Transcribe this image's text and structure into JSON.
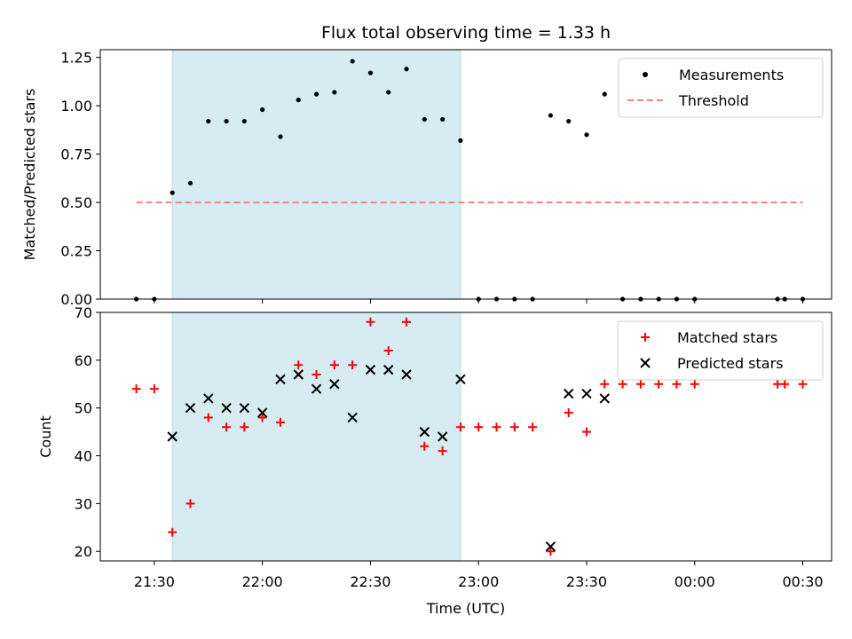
{
  "chart_data": [
    {
      "type": "scatter",
      "title": "Flux total observing time = 1.33 h",
      "ylabel": "Matched/Predicted stars",
      "xlabel": "",
      "ylim": [
        0,
        1.29
      ],
      "yticks": [
        0.0,
        0.25,
        0.5,
        0.75,
        1.0,
        1.25
      ],
      "ytick_labels": [
        "0.00",
        "0.25",
        "0.50",
        "0.75",
        "1.00",
        "1.25"
      ],
      "legend_position": "top-right",
      "shaded_interval": [
        "21:35",
        "22:55"
      ],
      "shaded_color": "#add8e6",
      "threshold": {
        "name": "Threshold",
        "value": 0.5,
        "x_range": [
          "21:25",
          "00:30"
        ],
        "color": "#ff7f7f",
        "style": "dashed"
      },
      "series": [
        {
          "name": "Measurements",
          "color": "#000000",
          "marker": "dot",
          "points": [
            {
              "x": "21:25",
              "y": 0.0
            },
            {
              "x": "21:30",
              "y": 0.0
            },
            {
              "x": "21:35",
              "y": 0.55
            },
            {
              "x": "21:40",
              "y": 0.6
            },
            {
              "x": "21:45",
              "y": 0.92
            },
            {
              "x": "21:50",
              "y": 0.92
            },
            {
              "x": "21:55",
              "y": 0.92
            },
            {
              "x": "22:00",
              "y": 0.98
            },
            {
              "x": "22:05",
              "y": 0.84
            },
            {
              "x": "22:10",
              "y": 1.03
            },
            {
              "x": "22:15",
              "y": 1.06
            },
            {
              "x": "22:20",
              "y": 1.07
            },
            {
              "x": "22:25",
              "y": 1.23
            },
            {
              "x": "22:30",
              "y": 1.17
            },
            {
              "x": "22:35",
              "y": 1.07
            },
            {
              "x": "22:40",
              "y": 1.19
            },
            {
              "x": "22:45",
              "y": 0.93
            },
            {
              "x": "22:50",
              "y": 0.93
            },
            {
              "x": "22:55",
              "y": 0.82
            },
            {
              "x": "23:00",
              "y": 0.0
            },
            {
              "x": "23:05",
              "y": 0.0
            },
            {
              "x": "23:10",
              "y": 0.0
            },
            {
              "x": "23:15",
              "y": 0.0
            },
            {
              "x": "23:20",
              "y": 0.95
            },
            {
              "x": "23:25",
              "y": 0.92
            },
            {
              "x": "23:30",
              "y": 0.85
            },
            {
              "x": "23:35",
              "y": 1.06
            },
            {
              "x": "23:40",
              "y": 0.0
            },
            {
              "x": "23:45",
              "y": 0.0
            },
            {
              "x": "23:50",
              "y": 0.0
            },
            {
              "x": "23:55",
              "y": 0.0
            },
            {
              "x": "00:00",
              "y": 0.0
            },
            {
              "x": "00:23",
              "y": 0.0
            },
            {
              "x": "00:25",
              "y": 0.0
            },
            {
              "x": "00:30",
              "y": 0.0
            }
          ]
        }
      ]
    },
    {
      "type": "scatter",
      "title": "",
      "ylabel": "Count",
      "xlabel": "Time (UTC)",
      "ylim": [
        18,
        70
      ],
      "yticks": [
        20,
        30,
        40,
        50,
        60,
        70
      ],
      "ytick_labels": [
        "20",
        "30",
        "40",
        "50",
        "60",
        "70"
      ],
      "xlim": [
        "21:15",
        "00:38"
      ],
      "xticks": [
        "21:30",
        "22:00",
        "22:30",
        "23:00",
        "23:30",
        "00:00",
        "00:30"
      ],
      "xtick_labels": [
        "21:30",
        "22:00",
        "22:30",
        "23:00",
        "23:30",
        "00:00",
        "00:30"
      ],
      "legend_position": "top-right",
      "shaded_interval": [
        "21:35",
        "22:55"
      ],
      "shaded_color": "#add8e6",
      "series": [
        {
          "name": "Matched stars",
          "color": "#ff0000",
          "marker": "plus",
          "points": [
            {
              "x": "21:25",
              "y": 54
            },
            {
              "x": "21:30",
              "y": 54
            },
            {
              "x": "21:35",
              "y": 24
            },
            {
              "x": "21:40",
              "y": 30
            },
            {
              "x": "21:45",
              "y": 48
            },
            {
              "x": "21:50",
              "y": 46
            },
            {
              "x": "21:55",
              "y": 46
            },
            {
              "x": "22:00",
              "y": 48
            },
            {
              "x": "22:05",
              "y": 47
            },
            {
              "x": "22:10",
              "y": 59
            },
            {
              "x": "22:15",
              "y": 57
            },
            {
              "x": "22:20",
              "y": 59
            },
            {
              "x": "22:25",
              "y": 59
            },
            {
              "x": "22:30",
              "y": 68
            },
            {
              "x": "22:35",
              "y": 62
            },
            {
              "x": "22:40",
              "y": 68
            },
            {
              "x": "22:45",
              "y": 42
            },
            {
              "x": "22:50",
              "y": 41
            },
            {
              "x": "22:55",
              "y": 46
            },
            {
              "x": "23:00",
              "y": 46
            },
            {
              "x": "23:05",
              "y": 46
            },
            {
              "x": "23:10",
              "y": 46
            },
            {
              "x": "23:15",
              "y": 46
            },
            {
              "x": "23:20",
              "y": 20
            },
            {
              "x": "23:25",
              "y": 49
            },
            {
              "x": "23:30",
              "y": 45
            },
            {
              "x": "23:35",
              "y": 55
            },
            {
              "x": "23:40",
              "y": 55
            },
            {
              "x": "23:45",
              "y": 55
            },
            {
              "x": "23:50",
              "y": 55
            },
            {
              "x": "23:55",
              "y": 55
            },
            {
              "x": "00:00",
              "y": 55
            },
            {
              "x": "00:23",
              "y": 55
            },
            {
              "x": "00:25",
              "y": 55
            },
            {
              "x": "00:30",
              "y": 55
            }
          ]
        },
        {
          "name": "Predicted stars",
          "color": "#000000",
          "marker": "x",
          "points": [
            {
              "x": "21:35",
              "y": 44
            },
            {
              "x": "21:40",
              "y": 50
            },
            {
              "x": "21:45",
              "y": 52
            },
            {
              "x": "21:50",
              "y": 50
            },
            {
              "x": "21:55",
              "y": 50
            },
            {
              "x": "22:00",
              "y": 49
            },
            {
              "x": "22:05",
              "y": 56
            },
            {
              "x": "22:10",
              "y": 57
            },
            {
              "x": "22:15",
              "y": 54
            },
            {
              "x": "22:20",
              "y": 55
            },
            {
              "x": "22:25",
              "y": 48
            },
            {
              "x": "22:30",
              "y": 58
            },
            {
              "x": "22:35",
              "y": 58
            },
            {
              "x": "22:40",
              "y": 57
            },
            {
              "x": "22:45",
              "y": 45
            },
            {
              "x": "22:50",
              "y": 44
            },
            {
              "x": "22:55",
              "y": 56
            },
            {
              "x": "23:20",
              "y": 21
            },
            {
              "x": "23:25",
              "y": 53
            },
            {
              "x": "23:30",
              "y": 53
            },
            {
              "x": "23:35",
              "y": 52
            }
          ]
        }
      ]
    }
  ]
}
